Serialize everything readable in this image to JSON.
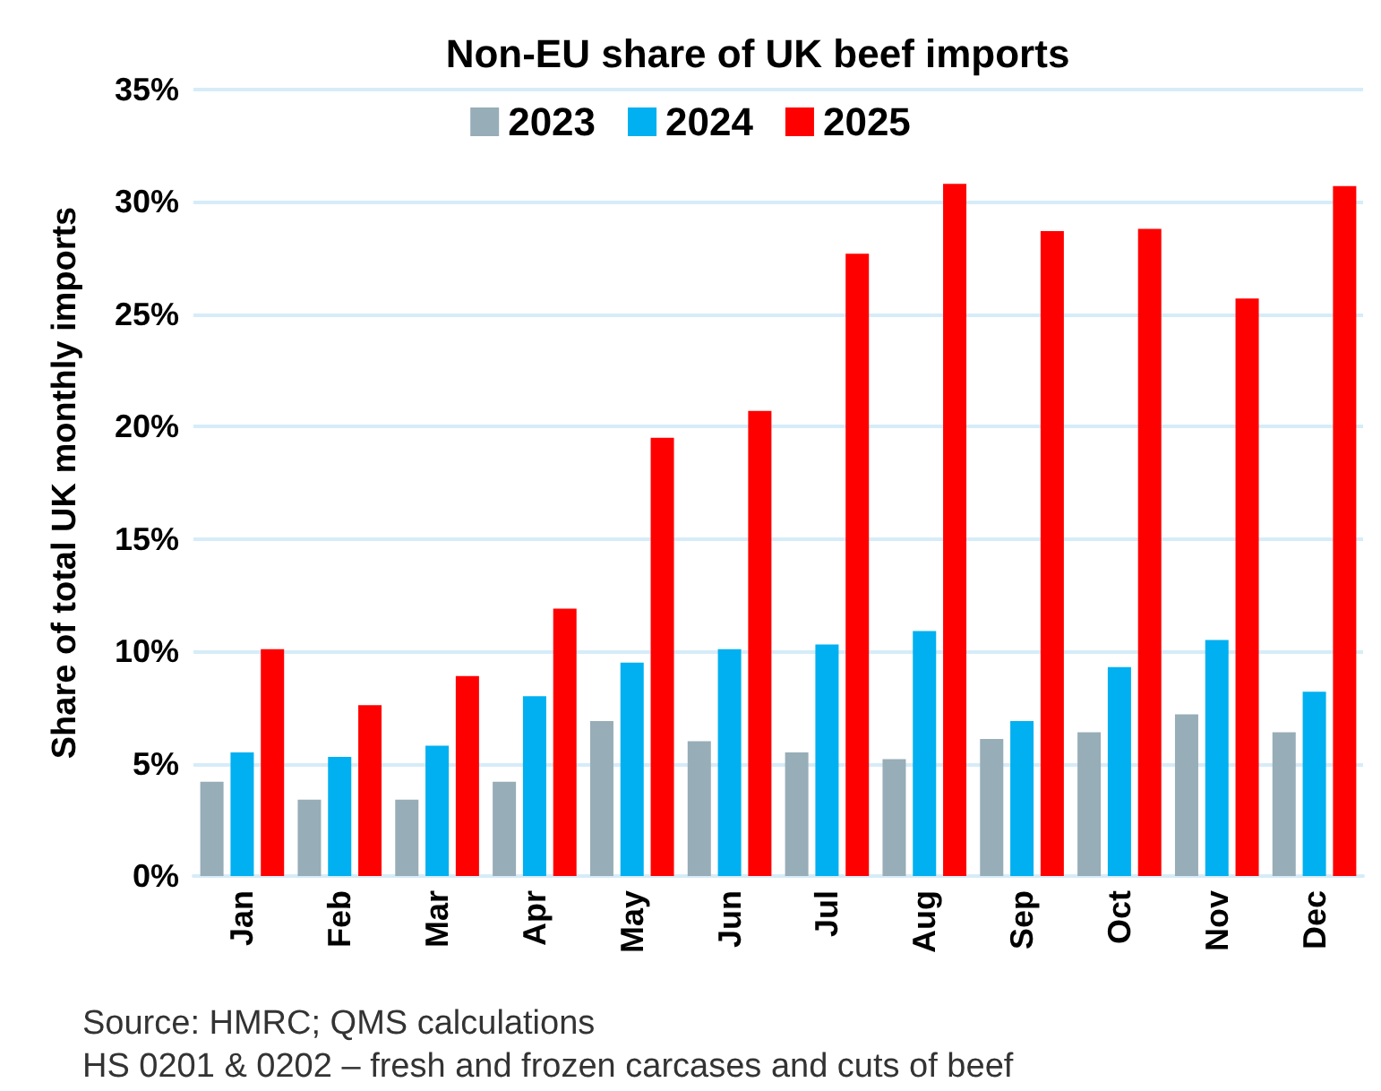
{
  "chart_data": {
    "type": "bar",
    "title": "Non-EU share of UK beef imports",
    "ylabel": "Share of total UK monthly imports",
    "categories": [
      "Jan",
      "Feb",
      "Mar",
      "Apr",
      "May",
      "Jun",
      "Jul",
      "Aug",
      "Sep",
      "Oct",
      "Nov",
      "Dec"
    ],
    "series": [
      {
        "name": "2023",
        "color": "#97adb7",
        "values": [
          4.2,
          3.4,
          3.4,
          4.2,
          6.9,
          6.0,
          5.5,
          5.2,
          6.1,
          6.4,
          7.2,
          6.4
        ]
      },
      {
        "name": "2024",
        "color": "#00b0f0",
        "values": [
          5.5,
          5.3,
          5.8,
          8.0,
          9.5,
          10.1,
          10.3,
          10.9,
          6.9,
          9.3,
          10.5,
          8.2
        ]
      },
      {
        "name": "2025",
        "color": "#ff0000",
        "values": [
          10.1,
          7.6,
          8.9,
          11.9,
          19.5,
          20.7,
          27.7,
          30.8,
          28.7,
          28.8,
          25.7,
          30.7
        ]
      }
    ],
    "ylim": [
      0,
      35
    ],
    "yticks": [
      {
        "value": 0,
        "label": "0%"
      },
      {
        "value": 5,
        "label": "5%"
      },
      {
        "value": 10,
        "label": "10%"
      },
      {
        "value": 15,
        "label": "15%"
      },
      {
        "value": 20,
        "label": "20%"
      },
      {
        "value": 25,
        "label": "25%"
      },
      {
        "value": 30,
        "label": "30%"
      },
      {
        "value": 35,
        "label": "35%"
      }
    ],
    "grid": "y",
    "legend": "top",
    "annotations": [
      "Source: HMRC; QMS calculations",
      "HS 0201 & 0202 – fresh and frozen carcases and cuts of beef"
    ]
  }
}
